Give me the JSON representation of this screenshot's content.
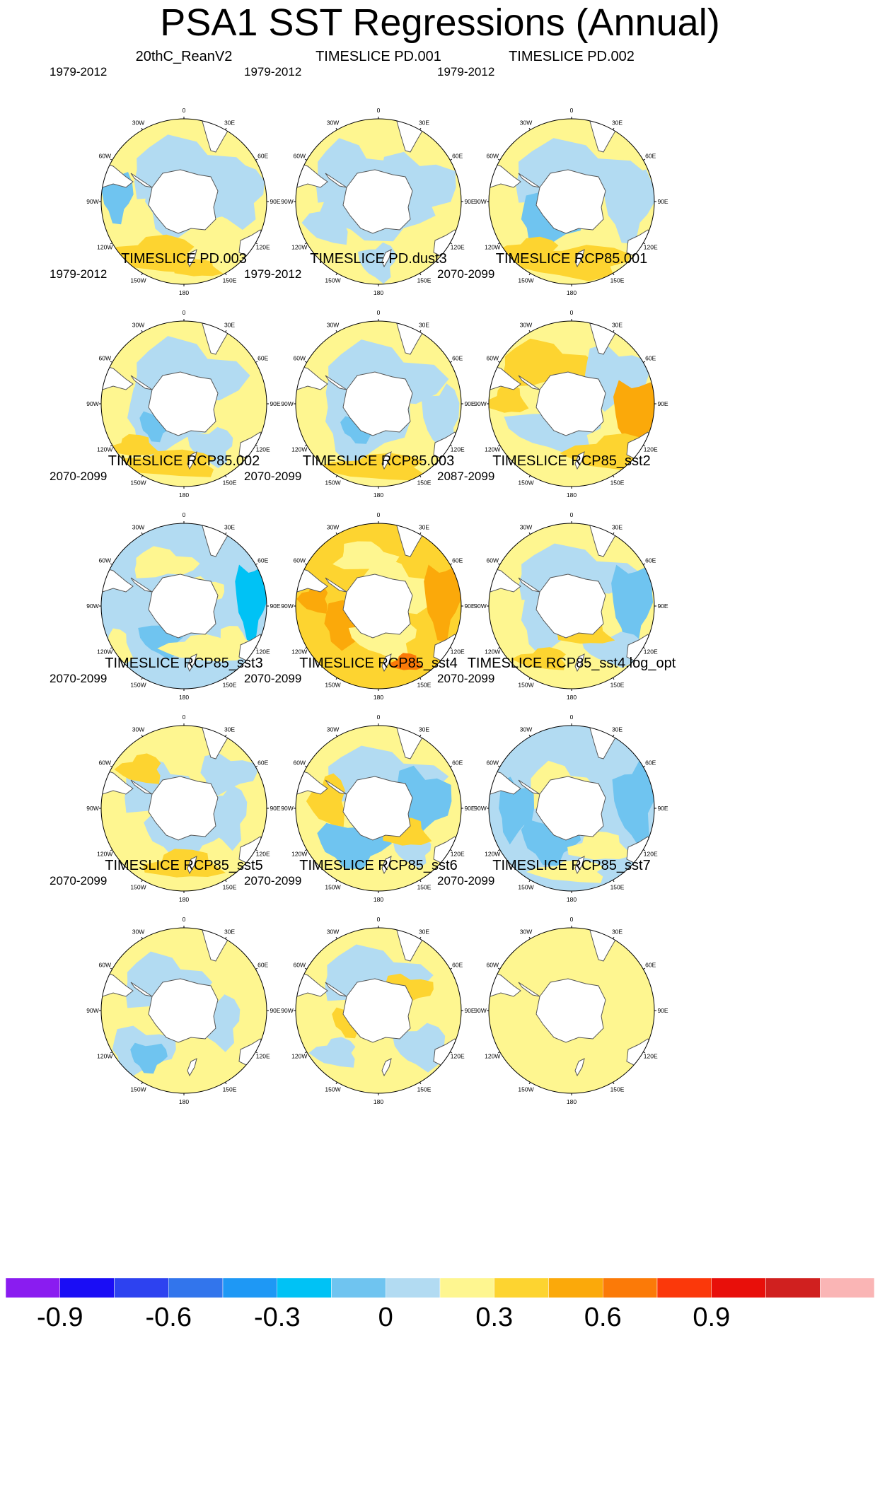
{
  "title": "PSA1 SST Regressions (Annual)",
  "longitude_labels": [
    "0",
    "30E",
    "60E",
    "90E",
    "120E",
    "150E",
    "180",
    "150W",
    "120W",
    "90W",
    "60W",
    "30W"
  ],
  "panels": [
    {
      "title": "20thC_ReanV2",
      "period": "1979-2012"
    },
    {
      "title": "TIMESLICE PD.001",
      "period": "1979-2012"
    },
    {
      "title": "TIMESLICE PD.002",
      "period": "1979-2012"
    },
    {
      "title": "TIMESLICE PD.003",
      "period": "1979-2012"
    },
    {
      "title": "TIMESLICE PD.dust3",
      "period": "1979-2012"
    },
    {
      "title": "TIMESLICE RCP85.001",
      "period": "2070-2099"
    },
    {
      "title": "TIMESLICE RCP85.002",
      "period": "2070-2099"
    },
    {
      "title": "TIMESLICE RCP85.003",
      "period": "2070-2099"
    },
    {
      "title": "TIMESLICE RCP85_sst2",
      "period": "2087-2099"
    },
    {
      "title": "TIMESLICE RCP85_sst3",
      "period": "2070-2099"
    },
    {
      "title": "TIMESLICE RCP85_sst4",
      "period": "2070-2099"
    },
    {
      "title": "TIMESLICE RCP85_sst4.log_opt",
      "period": "2070-2099"
    },
    {
      "title": "TIMESLICE RCP85_sst5",
      "period": "2070-2099"
    },
    {
      "title": "TIMESLICE RCP85_sst6",
      "period": "2070-2099"
    },
    {
      "title": "TIMESLICE RCP85_sst7",
      "period": "2070-2099"
    }
  ],
  "colorbar": {
    "colors": [
      "#8a1cf0",
      "#1a0df5",
      "#2d42f0",
      "#3275ec",
      "#1e98f5",
      "#00c2f5",
      "#6fc4f0",
      "#b2dbf2",
      "#fef690",
      "#fdd430",
      "#fba90a",
      "#fb7a08",
      "#fb380a",
      "#e80f0a",
      "#d0201f",
      "#fab5b5"
    ],
    "labels": [
      "-0.9",
      "-0.6",
      "-0.3",
      "0",
      "0.3",
      "0.6",
      "0.9"
    ],
    "label_boundaries": [
      1,
      3,
      5,
      7,
      9,
      11,
      13
    ]
  },
  "land_color": "#ffffff",
  "coast_color": "#555555"
}
